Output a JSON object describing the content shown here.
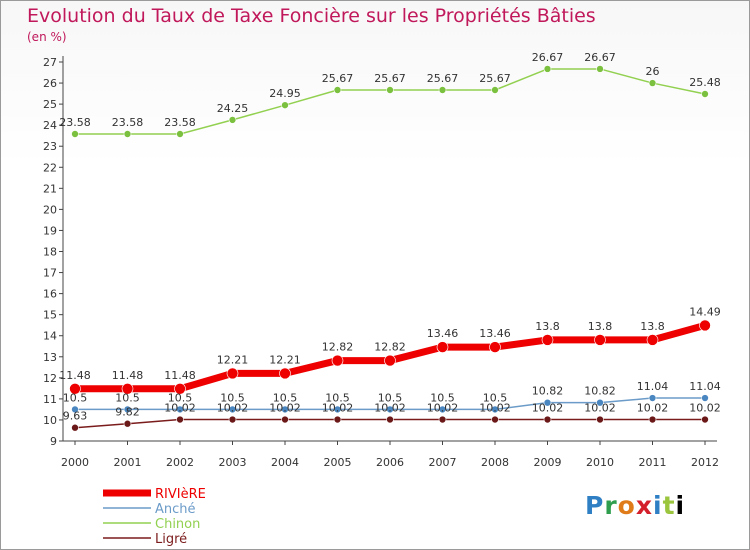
{
  "title": "Evolution du Taux de Taxe Foncière sur les Propriétés Bâties",
  "unit_label": "(en %)",
  "logo_text": "Proxiti",
  "chart_data": {
    "type": "line",
    "x": [
      "2000",
      "2001",
      "2002",
      "2003",
      "2004",
      "2005",
      "2006",
      "2007",
      "2008",
      "2009",
      "2010",
      "2011",
      "2012"
    ],
    "ylim": [
      9,
      27
    ],
    "yticks": [
      9,
      10,
      11,
      12,
      13,
      14,
      15,
      16,
      17,
      18,
      19,
      20,
      21,
      22,
      23,
      24,
      25,
      26,
      27
    ],
    "grid": false,
    "legend_position": "bottom-left",
    "series": [
      {
        "name": "RIVIèRE",
        "color": "#ee0000",
        "values": [
          11.48,
          11.48,
          11.48,
          12.21,
          12.21,
          12.82,
          12.82,
          13.46,
          13.46,
          13.8,
          13.8,
          13.8,
          14.49
        ],
        "labels": [
          "11.48",
          "11.48",
          "11.48",
          "12.21",
          "12.21",
          "12.82",
          "12.82",
          "13.46",
          "13.46",
          "13.8",
          "13.8",
          "13.8",
          "14.49"
        ]
      },
      {
        "name": "Anché",
        "color": "#6b9bc8",
        "values": [
          10.5,
          10.5,
          10.5,
          10.5,
          10.5,
          10.5,
          10.5,
          10.5,
          10.5,
          10.82,
          10.82,
          11.04,
          11.04
        ],
        "labels": [
          "10.5",
          "10.5",
          "10.5",
          "10.5",
          "10.5",
          "10.5",
          "10.5",
          "10.5",
          "10.5",
          "10.82",
          "10.82",
          "11.04",
          "11.04"
        ]
      },
      {
        "name": "Chinon",
        "color": "#92d050",
        "values": [
          23.58,
          23.58,
          23.58,
          24.25,
          24.95,
          25.67,
          25.67,
          25.67,
          25.67,
          26.67,
          26.67,
          26,
          25.48
        ],
        "labels": [
          "23.58",
          "23.58",
          "23.58",
          "24.25",
          "24.95",
          "25.67",
          "25.67",
          "25.67",
          "25.67",
          "26.67",
          "26.67",
          "26",
          "25.48"
        ]
      },
      {
        "name": "Ligré",
        "color": "#7b1c1c",
        "values": [
          9.63,
          9.82,
          10.02,
          10.02,
          10.02,
          10.02,
          10.02,
          10.02,
          10.02,
          10.02,
          10.02,
          10.02,
          10.02
        ],
        "labels": [
          "9.63",
          "9.82",
          "10.02",
          "10.02",
          "10.02",
          "10.02",
          "10.02",
          "10.02",
          "10.02",
          "10.02",
          "10.02",
          "10.02",
          "10.02"
        ]
      }
    ]
  }
}
